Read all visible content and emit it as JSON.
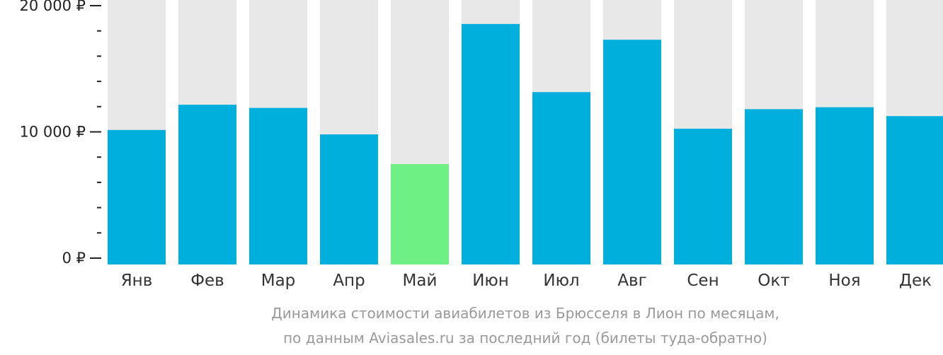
{
  "chart_data": {
    "type": "bar",
    "categories": [
      "Янв",
      "Фев",
      "Мар",
      "Апр",
      "Май",
      "Июн",
      "Июл",
      "Авг",
      "Сен",
      "Окт",
      "Ноя",
      "Дек"
    ],
    "values": [
      10150,
      12150,
      11900,
      9800,
      7450,
      18550,
      13150,
      17300,
      10250,
      11800,
      11950,
      11250
    ],
    "ylim": [
      0,
      20000
    ],
    "yticks": [
      {
        "value": 0,
        "label": "0 ₽"
      },
      {
        "value": 10000,
        "label": "10 000 ₽"
      },
      {
        "value": 20000,
        "label": "20 000 ₽"
      }
    ],
    "highlight_index": 4,
    "colors": {
      "bar": "#00afdc",
      "highlight": "#6ef085",
      "background_bar": "#e8e8e8",
      "axis": "#222222"
    },
    "grid": false,
    "legend": "none"
  },
  "caption": {
    "line1": "Динамика стоимости авиабилетов из Брюсселя в Лион по месяцам,",
    "line2": "по данным Aviasales.ru за последний год (билеты туда-обратно)"
  }
}
